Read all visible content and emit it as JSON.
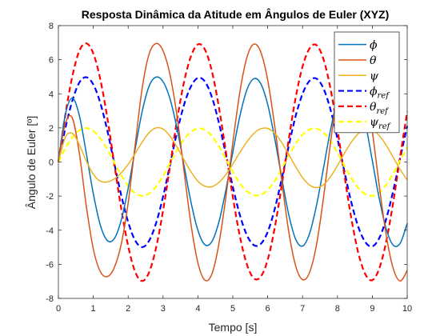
{
  "chart_data": {
    "type": "line",
    "title": "Resposta Dinâmica da Atitude em Ângulos de Euler (XYZ)",
    "xlabel": "Tempo [s]",
    "ylabel": "Ângulo de Euler [º]",
    "xlim": [
      0,
      10
    ],
    "ylim": [
      -8,
      8
    ],
    "xticks": [
      0,
      1,
      2,
      3,
      4,
      5,
      6,
      7,
      8,
      9,
      10
    ],
    "yticks": [
      -8,
      -6,
      -4,
      -2,
      0,
      2,
      4,
      6,
      8
    ],
    "grid": false,
    "legend_position": "top-right",
    "series": [
      {
        "name": "ϕ",
        "subscript": "",
        "color": "#0072BD",
        "style": "solid",
        "x": [
          0,
          0.2,
          0.4,
          0.6,
          0.8,
          1.0,
          1.2,
          1.4,
          1.6,
          1.8,
          2.0,
          2.2,
          2.4,
          2.6,
          2.8,
          3.0,
          3.2,
          3.4,
          3.6,
          3.8,
          4.0,
          4.2,
          4.4,
          4.6,
          4.8,
          5.0,
          5.2,
          5.4,
          5.6,
          5.8,
          6.0,
          6.2,
          6.4,
          6.6,
          6.8,
          7.0,
          7.2,
          7.4,
          7.6,
          7.8,
          8.0,
          8.2,
          8.4,
          8.6,
          8.8,
          9.0,
          9.2,
          9.4,
          9.6,
          9.8,
          10.0
        ],
        "y": [
          0.0,
          2.79,
          3.75,
          2.73,
          0.51,
          -1.85,
          -3.69,
          -4.6,
          -4.5,
          -3.42,
          -1.55,
          0.75,
          2.95,
          4.45,
          4.98,
          4.71,
          3.7,
          1.98,
          -0.18,
          -2.34,
          -4.01,
          -4.85,
          -4.67,
          -3.53,
          -1.65,
          0.57,
          2.67,
          4.21,
          4.88,
          4.6,
          3.38,
          1.4,
          -0.9,
          -3.05,
          -4.52,
          -4.93,
          -4.2,
          -2.54,
          -0.36,
          1.87,
          3.68,
          4.7,
          4.8,
          3.97,
          2.3,
          0.08,
          -2.16,
          -3.94,
          -4.88,
          -4.76,
          -3.6
        ]
      },
      {
        "name": "θ",
        "subscript": "",
        "color": "#D95319",
        "style": "solid",
        "x": [
          0,
          0.2,
          0.4,
          0.6,
          0.8,
          1.0,
          1.2,
          1.4,
          1.6,
          1.8,
          2.0,
          2.2,
          2.4,
          2.6,
          2.8,
          3.0,
          3.2,
          3.4,
          3.6,
          3.8,
          4.0,
          4.2,
          4.4,
          4.6,
          4.8,
          5.0,
          5.2,
          5.4,
          5.6,
          5.8,
          6.0,
          6.2,
          6.4,
          6.6,
          6.8,
          7.0,
          7.2,
          7.4,
          7.6,
          7.8,
          8.0,
          8.2,
          8.4,
          8.6,
          8.8,
          9.0,
          9.2,
          9.4,
          9.6,
          9.8,
          10.0
        ],
        "y": [
          0.0,
          2.27,
          2.58,
          0.52,
          -2.59,
          -5.09,
          -6.42,
          -6.72,
          -6.2,
          -4.83,
          -2.4,
          0.98,
          4.3,
          6.33,
          6.95,
          6.52,
          5.12,
          2.71,
          -0.5,
          -3.63,
          -5.92,
          -6.93,
          -6.57,
          -4.82,
          -2.08,
          1.13,
          4.07,
          6.1,
          6.91,
          6.46,
          4.81,
          2.14,
          -1.05,
          -4.03,
          -6.08,
          -6.9,
          -6.48,
          -4.85,
          -2.1,
          1.12,
          4.06,
          6.11,
          6.92,
          6.4,
          4.63,
          1.83,
          -1.42,
          -4.31,
          -6.25,
          -6.98,
          -6.36
        ]
      },
      {
        "name": "ψ",
        "subscript": "",
        "color": "#EDB120",
        "style": "solid",
        "x": [
          0,
          0.2,
          0.4,
          0.6,
          0.8,
          1.0,
          1.2,
          1.4,
          1.6,
          1.8,
          2.0,
          2.2,
          2.4,
          2.6,
          2.8,
          3.0,
          3.2,
          3.4,
          3.6,
          3.8,
          4.0,
          4.2,
          4.4,
          4.6,
          4.8,
          5.0,
          5.2,
          5.4,
          5.6,
          5.8,
          6.0,
          6.2,
          6.4,
          6.6,
          6.8,
          7.0,
          7.2,
          7.4,
          7.6,
          7.8,
          8.0,
          8.2,
          8.4,
          8.6,
          8.8,
          9.0,
          9.2,
          9.4,
          9.6,
          9.8,
          10.0
        ],
        "y": [
          0.0,
          1.45,
          1.68,
          1.02,
          0.06,
          -0.72,
          -1.12,
          -1.17,
          -0.99,
          -0.64,
          -0.14,
          0.5,
          1.16,
          1.72,
          2.0,
          1.93,
          1.52,
          0.87,
          0.14,
          -0.57,
          -1.13,
          -1.42,
          -1.45,
          -1.2,
          -0.74,
          -0.12,
          0.55,
          1.17,
          1.67,
          1.95,
          1.97,
          1.69,
          1.15,
          0.46,
          -0.27,
          -0.92,
          -1.35,
          -1.5,
          -1.33,
          -0.87,
          -0.21,
          0.51,
          1.17,
          1.67,
          1.93,
          1.9,
          1.55,
          0.98,
          0.27,
          -0.45,
          -1.05
        ]
      },
      {
        "name": "ϕ",
        "subscript": "ref",
        "color": "#0000FF",
        "style": "dashed",
        "x": [
          0,
          0.2,
          0.4,
          0.6,
          0.8,
          1.0,
          1.2,
          1.4,
          1.6,
          1.8,
          2.0,
          2.2,
          2.4,
          2.6,
          2.8,
          3.0,
          3.2,
          3.4,
          3.6,
          3.8,
          4.0,
          4.2,
          4.4,
          4.6,
          4.8,
          5.0,
          5.2,
          5.4,
          5.6,
          5.8,
          6.0,
          6.2,
          6.4,
          6.6,
          6.8,
          7.0,
          7.2,
          7.4,
          7.6,
          7.8,
          8.0,
          8.2,
          8.4,
          8.6,
          8.8,
          9.0,
          9.2,
          9.4,
          9.6,
          9.8,
          10.0
        ],
        "y": [
          0.0,
          1.99,
          3.59,
          4.66,
          4.97,
          4.55,
          3.47,
          1.87,
          -0.06,
          -1.94,
          -3.52,
          -4.6,
          -4.99,
          -4.62,
          -3.59,
          -2.04,
          -0.17,
          1.74,
          3.34,
          4.43,
          4.93,
          4.72,
          3.81,
          2.31,
          0.46,
          -1.45,
          -3.09,
          -4.27,
          -4.87,
          -4.81,
          -4.1,
          -2.77,
          -1.01,
          0.91,
          2.68,
          4.0,
          4.76,
          4.89,
          4.31,
          3.08,
          1.37,
          -0.56,
          -2.38,
          -3.82,
          -4.7,
          -4.95,
          -4.46,
          -3.32,
          -1.68,
          0.24,
          2.11
        ]
      },
      {
        "name": "θ",
        "subscript": "ref",
        "color": "#FF0000",
        "style": "dashed",
        "x": [
          0,
          0.2,
          0.4,
          0.6,
          0.8,
          1.0,
          1.2,
          1.4,
          1.6,
          1.8,
          2.0,
          2.2,
          2.4,
          2.6,
          2.8,
          3.0,
          3.2,
          3.4,
          3.6,
          3.8,
          4.0,
          4.2,
          4.4,
          4.6,
          4.8,
          5.0,
          5.2,
          5.4,
          5.6,
          5.8,
          6.0,
          6.2,
          6.4,
          6.6,
          6.8,
          7.0,
          7.2,
          7.4,
          7.6,
          7.8,
          8.0,
          8.2,
          8.4,
          8.6,
          8.8,
          9.0,
          9.2,
          9.4,
          9.6,
          9.8,
          10.0
        ],
        "y": [
          0.0,
          2.79,
          5.03,
          6.52,
          6.96,
          6.37,
          4.86,
          2.62,
          -0.08,
          -2.72,
          -4.93,
          -6.44,
          -6.98,
          -6.47,
          -5.03,
          -2.86,
          -0.24,
          2.44,
          4.68,
          6.2,
          6.9,
          6.6,
          5.33,
          3.23,
          0.64,
          -2.03,
          -4.33,
          -5.98,
          -6.82,
          -6.73,
          -5.74,
          -3.88,
          -1.41,
          1.27,
          3.75,
          5.6,
          6.66,
          6.85,
          6.03,
          4.31,
          1.92,
          -0.78,
          -3.33,
          -5.35,
          -6.58,
          -6.93,
          -6.24,
          -4.65,
          -2.35,
          0.34,
          2.95
        ]
      },
      {
        "name": "ψ",
        "subscript": "ref",
        "color": "#FFFF00",
        "style": "dashed",
        "x": [
          0,
          0.2,
          0.4,
          0.6,
          0.8,
          1.0,
          1.2,
          1.4,
          1.6,
          1.8,
          2.0,
          2.2,
          2.4,
          2.6,
          2.8,
          3.0,
          3.2,
          3.4,
          3.6,
          3.8,
          4.0,
          4.2,
          4.4,
          4.6,
          4.8,
          5.0,
          5.2,
          5.4,
          5.6,
          5.8,
          6.0,
          6.2,
          6.4,
          6.6,
          6.8,
          7.0,
          7.2,
          7.4,
          7.6,
          7.8,
          8.0,
          8.2,
          8.4,
          8.6,
          8.8,
          9.0,
          9.2,
          9.4,
          9.6,
          9.8,
          10.0
        ],
        "y": [
          0.0,
          0.8,
          1.44,
          1.86,
          1.99,
          1.82,
          1.39,
          0.75,
          -0.02,
          -0.78,
          -1.41,
          -1.84,
          -1.99,
          -1.85,
          -1.44,
          -0.82,
          -0.07,
          0.7,
          1.34,
          1.77,
          1.97,
          1.89,
          1.52,
          0.92,
          0.18,
          -0.58,
          -1.24,
          -1.71,
          -1.95,
          -1.92,
          -1.64,
          -1.11,
          -0.4,
          0.37,
          1.07,
          1.6,
          1.9,
          1.96,
          1.72,
          1.23,
          0.55,
          -0.22,
          -0.95,
          -1.53,
          -1.88,
          -1.98,
          -1.78,
          -1.33,
          -0.67,
          0.1,
          0.85
        ]
      }
    ]
  }
}
